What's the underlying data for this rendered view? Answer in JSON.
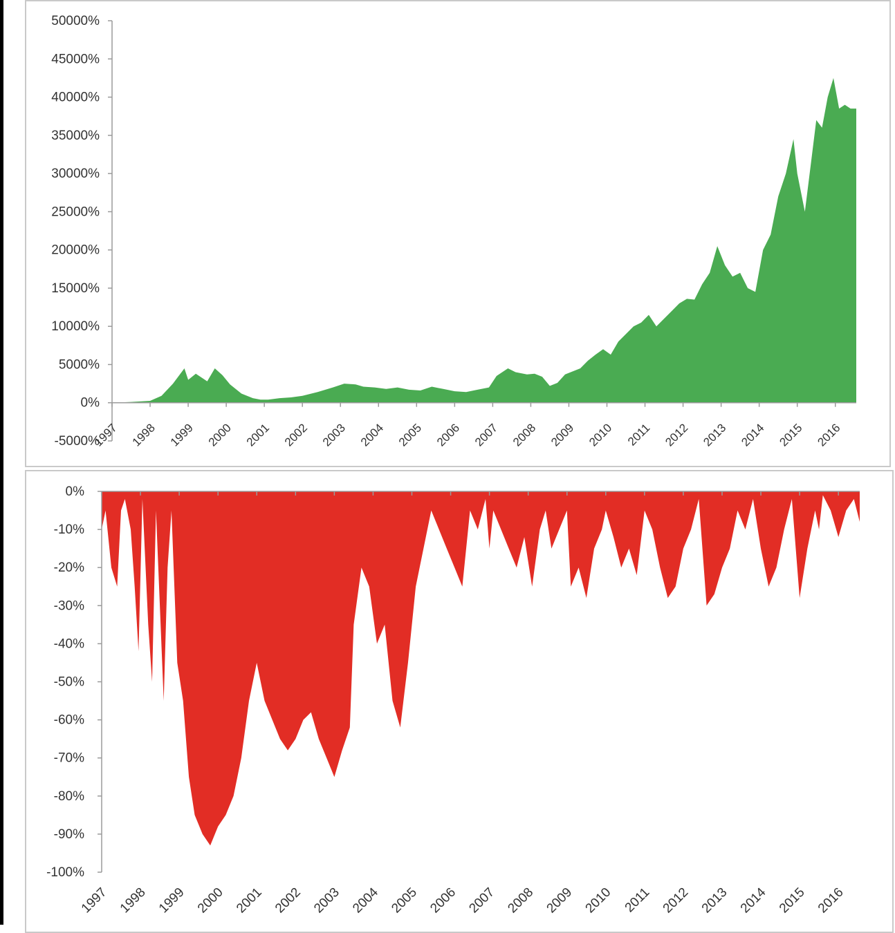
{
  "chart_data": [
    {
      "type": "area",
      "title": "",
      "xlabel": "",
      "ylabel": "",
      "ylim": [
        -5000,
        50000
      ],
      "y_ticks": [
        "50000%",
        "45000%",
        "40000%",
        "35000%",
        "30000%",
        "25000%",
        "20000%",
        "15000%",
        "10000%",
        "5000%",
        "0%",
        "-5000%"
      ],
      "x_tick_labels": [
        "1997",
        "1998",
        "1999",
        "2000",
        "2001",
        "2002",
        "2003",
        "2004",
        "2005",
        "2006",
        "2007",
        "2008",
        "2009",
        "2010",
        "2011",
        "2012",
        "2013",
        "2014",
        "2015",
        "2016"
      ],
      "grid": false,
      "color": "#4aab52",
      "series": [
        {
          "x": [
            1997.0,
            1997.5,
            1998.0,
            1998.3,
            1998.6,
            1998.9,
            1999.0,
            1999.2,
            1999.5,
            1999.7,
            1999.9,
            2000.1,
            2000.4,
            2000.7,
            2000.9,
            2001.1,
            2001.4,
            2001.7,
            2002.0,
            2002.4,
            2002.8,
            2003.1,
            2003.4,
            2003.6,
            2003.9,
            2004.2,
            2004.5,
            2004.8,
            2005.1,
            2005.4,
            2005.7,
            2006.0,
            2006.3,
            2006.6,
            2006.9,
            2007.1,
            2007.4,
            2007.6,
            2007.9,
            2008.1,
            2008.3,
            2008.5,
            2008.7,
            2008.9,
            2009.1,
            2009.3,
            2009.5,
            2009.7,
            2009.9,
            2010.1,
            2010.3,
            2010.5,
            2010.7,
            2010.9,
            2011.1,
            2011.3,
            2011.5,
            2011.7,
            2011.9,
            2012.1,
            2012.3,
            2012.5,
            2012.7,
            2012.9,
            2013.1,
            2013.3,
            2013.5,
            2013.7,
            2013.9,
            2014.1,
            2014.3,
            2014.5,
            2014.7,
            2014.9,
            2015.0,
            2015.2,
            2015.35,
            2015.5,
            2015.65,
            2015.8,
            2015.95,
            2016.1,
            2016.25,
            2016.4,
            2016.5,
            2016.55
          ],
          "values": [
            0,
            100,
            250,
            900,
            2500,
            4500,
            3000,
            3800,
            2800,
            4500,
            3600,
            2400,
            1200,
            600,
            400,
            400,
            600,
            700,
            900,
            1400,
            2000,
            2500,
            2400,
            2100,
            2000,
            1800,
            2000,
            1700,
            1600,
            2100,
            1800,
            1500,
            1400,
            1700,
            2000,
            3500,
            4500,
            4000,
            3700,
            3800,
            3400,
            2200,
            2600,
            3700,
            4100,
            4500,
            5500,
            6300,
            7000,
            6300,
            8000,
            9000,
            10000,
            10500,
            11500,
            10000,
            11000,
            12000,
            13000,
            13600,
            13500,
            15500,
            17000,
            20500,
            18000,
            16500,
            17000,
            15000,
            14500,
            20000,
            22000,
            27000,
            30000,
            34500,
            30000,
            25000,
            31000,
            37000,
            36000,
            40000,
            42500,
            38500,
            39000,
            38500,
            38500,
            38500
          ]
        }
      ]
    },
    {
      "type": "area",
      "title": "",
      "xlabel": "",
      "ylabel": "",
      "ylim": [
        -100,
        0
      ],
      "y_ticks": [
        "0%",
        "-10%",
        "-20%",
        "-30%",
        "-40%",
        "-50%",
        "-60%",
        "-70%",
        "-80%",
        "-90%",
        "-100%"
      ],
      "x_tick_labels": [
        "1997",
        "1998",
        "1999",
        "2000",
        "2001",
        "2002",
        "2003",
        "2004",
        "2005",
        "2006",
        "2007",
        "2008",
        "2009",
        "2010",
        "2011",
        "2012",
        "2013",
        "2014",
        "2015",
        "2016"
      ],
      "grid": false,
      "color": "#e22d25",
      "series": [
        {
          "x": [
            1997.0,
            1997.1,
            1997.25,
            1997.4,
            1997.5,
            1997.6,
            1997.75,
            1997.85,
            1997.95,
            1998.05,
            1998.2,
            1998.3,
            1998.4,
            1998.5,
            1998.6,
            1998.7,
            1998.8,
            1998.95,
            1999.1,
            1999.25,
            1999.4,
            1999.6,
            1999.8,
            2000.0,
            2000.2,
            2000.4,
            2000.6,
            2000.8,
            2001.0,
            2001.2,
            2001.4,
            2001.6,
            2001.8,
            2002.0,
            2002.2,
            2002.4,
            2002.6,
            2002.8,
            2003.0,
            2003.2,
            2003.4,
            2003.5,
            2003.7,
            2003.9,
            2004.1,
            2004.3,
            2004.5,
            2004.7,
            2004.9,
            2005.1,
            2005.3,
            2005.5,
            2005.7,
            2005.9,
            2006.1,
            2006.3,
            2006.5,
            2006.7,
            2006.9,
            2007.0,
            2007.1,
            2007.3,
            2007.5,
            2007.7,
            2007.9,
            2008.1,
            2008.3,
            2008.45,
            2008.6,
            2008.8,
            2009.0,
            2009.1,
            2009.3,
            2009.5,
            2009.7,
            2009.9,
            2010.0,
            2010.2,
            2010.4,
            2010.6,
            2010.8,
            2011.0,
            2011.2,
            2011.4,
            2011.6,
            2011.8,
            2012.0,
            2012.2,
            2012.4,
            2012.6,
            2012.8,
            2013.0,
            2013.2,
            2013.4,
            2013.6,
            2013.8,
            2014.0,
            2014.2,
            2014.4,
            2014.6,
            2014.8,
            2015.0,
            2015.2,
            2015.4,
            2015.5,
            2015.6,
            2015.8,
            2016.0,
            2016.2,
            2016.4,
            2016.55
          ],
          "values": [
            -10,
            -5,
            -20,
            -25,
            -5,
            -2,
            -10,
            -25,
            -42,
            -2,
            -35,
            -50,
            -5,
            -30,
            -55,
            -20,
            -5,
            -45,
            -55,
            -75,
            -85,
            -90,
            -93,
            -88,
            -85,
            -80,
            -70,
            -55,
            -45,
            -55,
            -60,
            -65,
            -68,
            -65,
            -60,
            -58,
            -65,
            -70,
            -75,
            -68,
            -62,
            -35,
            -20,
            -25,
            -40,
            -35,
            -55,
            -62,
            -45,
            -25,
            -15,
            -5,
            -10,
            -15,
            -20,
            -25,
            -5,
            -10,
            -2,
            -15,
            -5,
            -10,
            -15,
            -20,
            -12,
            -25,
            -10,
            -5,
            -15,
            -10,
            -5,
            -25,
            -20,
            -28,
            -15,
            -10,
            -5,
            -12,
            -20,
            -15,
            -22,
            -5,
            -10,
            -20,
            -28,
            -25,
            -15,
            -10,
            -2,
            -30,
            -27,
            -20,
            -15,
            -5,
            -10,
            -2,
            -15,
            -25,
            -20,
            -10,
            -2,
            -28,
            -15,
            -5,
            -10,
            -1,
            -5,
            -12,
            -5,
            -2,
            -8
          ]
        }
      ]
    }
  ]
}
